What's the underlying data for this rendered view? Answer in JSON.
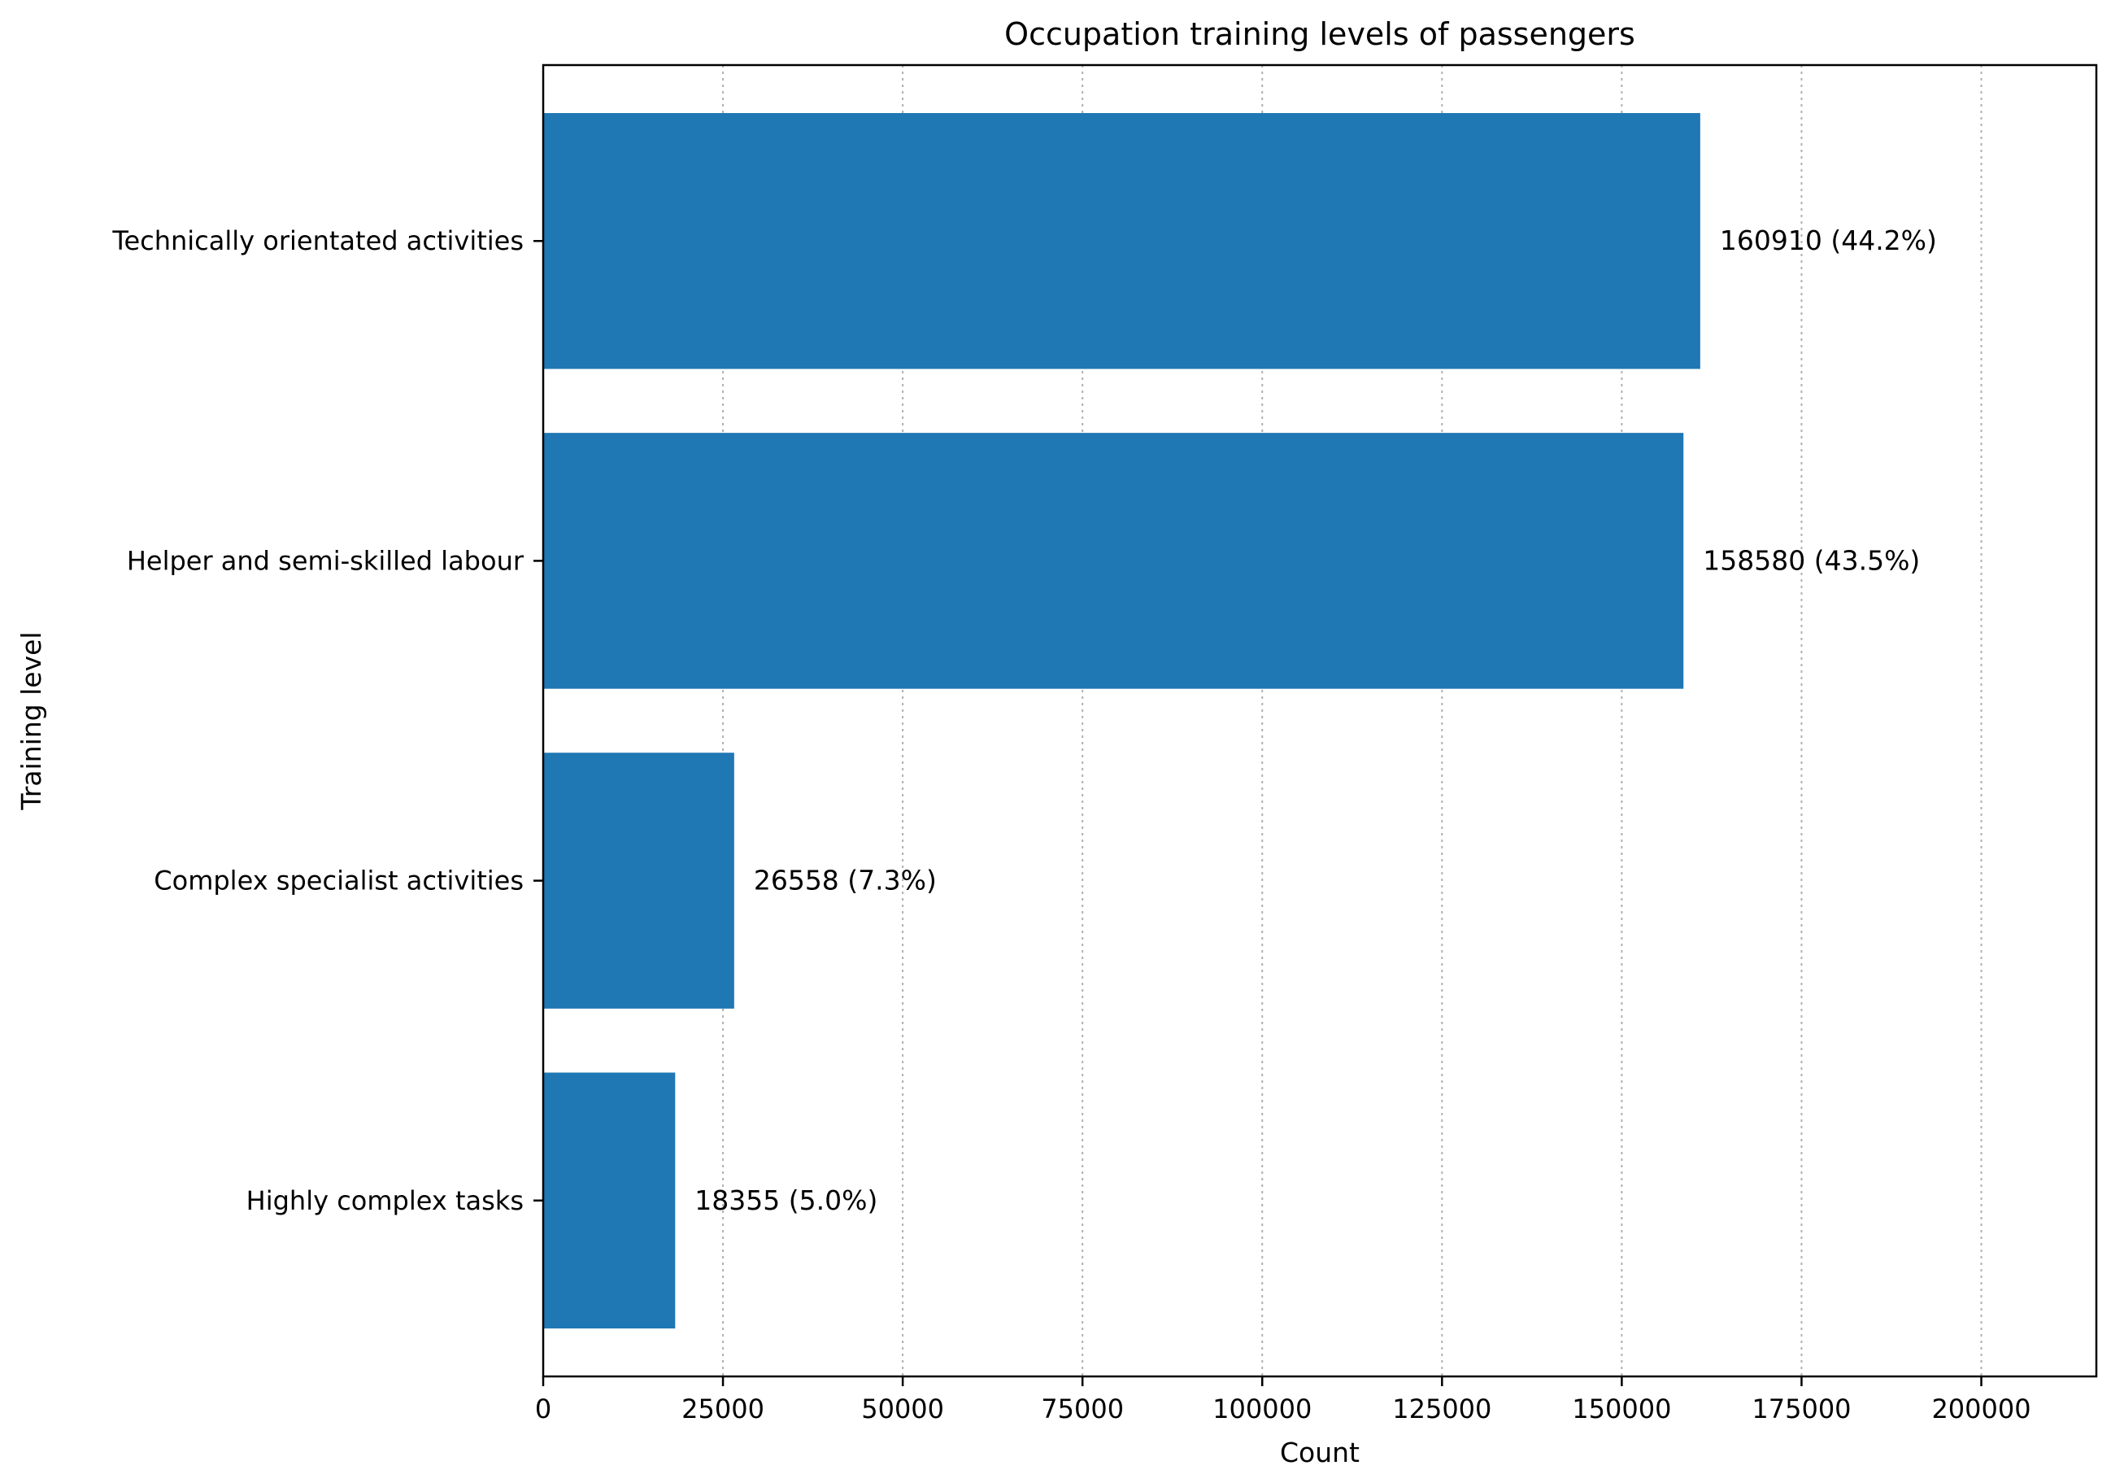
{
  "chart_data": {
    "type": "bar",
    "orientation": "horizontal",
    "title": "Occupation training levels of passengers",
    "xlabel": "Count",
    "ylabel": "Training level",
    "xlim": [
      0,
      216000
    ],
    "xticks": [
      0,
      25000,
      50000,
      75000,
      100000,
      125000,
      150000,
      175000,
      200000
    ],
    "grid": "x-dotted",
    "categories": [
      "Technically orientated activities",
      "Helper and semi-skilled labour",
      "Complex specialist activities",
      "Highly complex tasks"
    ],
    "values": [
      160910,
      158580,
      26558,
      18355
    ],
    "data_labels": [
      "160910 (44.2%)",
      "158580 (43.5%)",
      "26558 (7.3%)",
      "18355 (5.0%)"
    ],
    "bar_color": "#1f77b4"
  }
}
